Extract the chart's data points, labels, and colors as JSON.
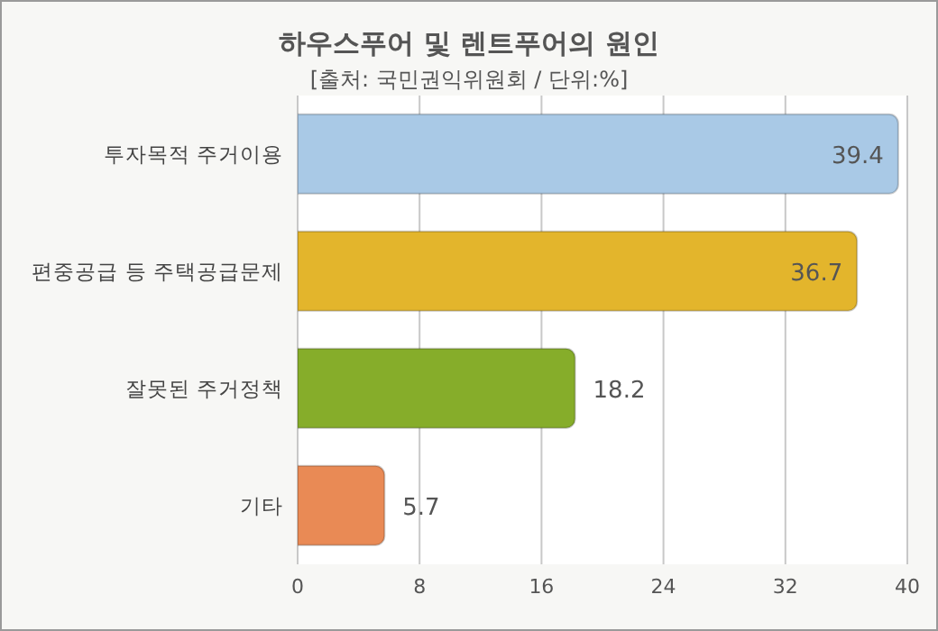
{
  "chart_data": {
    "type": "bar",
    "orientation": "horizontal",
    "title": "하우스푸어 및 렌트푸어의 원인",
    "subtitle": "[출처: 국민권익위원회 / 단위:%]",
    "categories": [
      "투자목적 주거이용",
      "편중공급 등 주택공급문제",
      "잘못된 주거정책",
      "기타"
    ],
    "values": [
      39.4,
      36.7,
      18.2,
      5.7
    ],
    "colors": [
      "#a9c9e6",
      "#e3b52c",
      "#86ad2a",
      "#e98a55"
    ],
    "xlim": [
      0,
      40
    ],
    "xticks": [
      0,
      8,
      16,
      24,
      32,
      40
    ],
    "grid": "x",
    "data_labels": true
  }
}
